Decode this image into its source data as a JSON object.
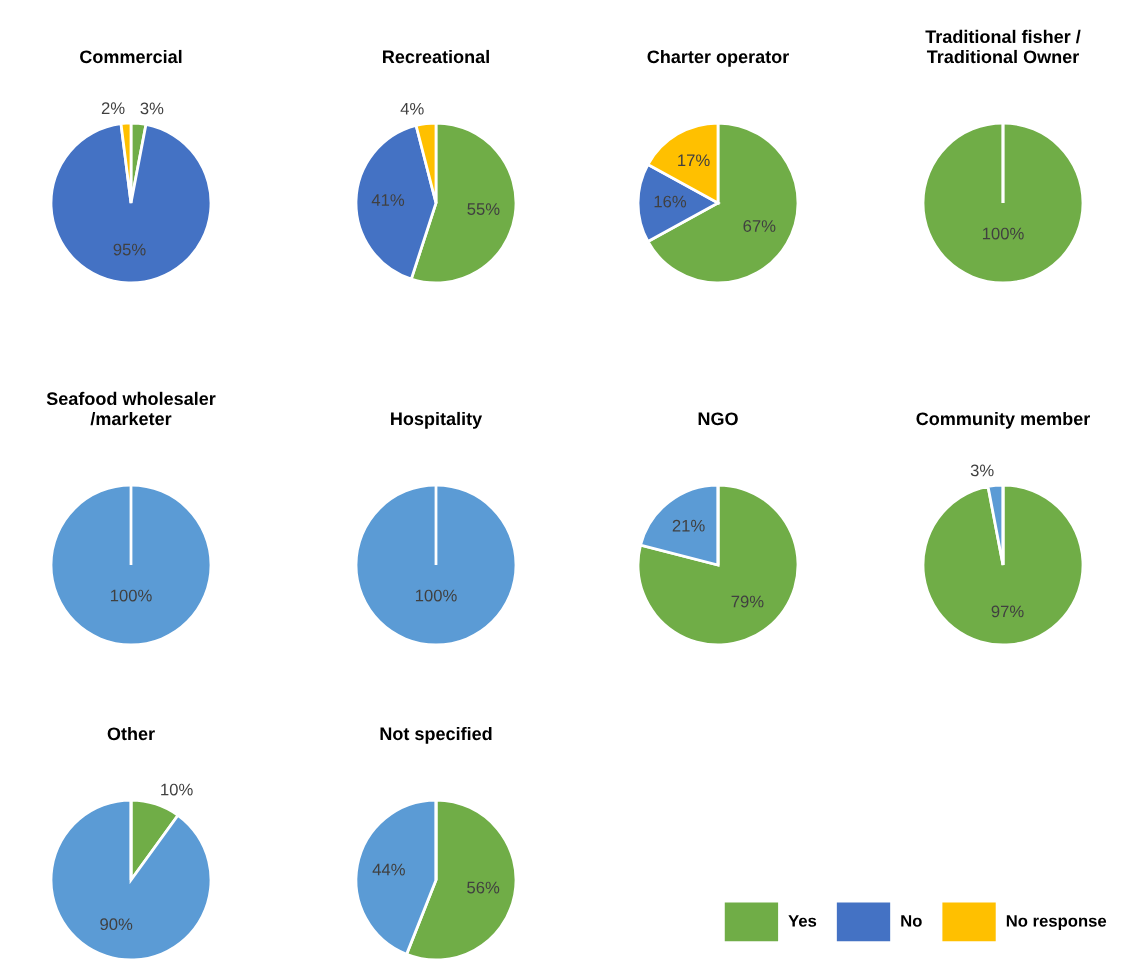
{
  "chart_data": [
    {
      "type": "pie",
      "title": "Commercial",
      "categories": [
        "Yes",
        "No",
        "No response"
      ],
      "values": [
        3,
        95,
        2
      ],
      "colors": [
        "#70ad47",
        "#4472c4",
        "#ffc000"
      ],
      "value_labels": [
        "3%",
        "95%",
        "2%"
      ],
      "legend": "bottom right"
    },
    {
      "type": "pie",
      "title": "Recreational",
      "values": [
        55,
        41,
        4
      ],
      "colors": [
        "#70ad47",
        "#4472c4",
        "#ffc000"
      ],
      "value_labels": [
        "55%",
        "41%",
        "4%"
      ]
    },
    {
      "type": "pie",
      "title": "Charter operator",
      "values": [
        67,
        16,
        17
      ],
      "colors": [
        "#70ad47",
        "#4472c4",
        "#ffc000"
      ],
      "value_labels": [
        "67%",
        "16%",
        "17%"
      ]
    },
    {
      "type": "pie",
      "title": "Traditional fisher /\nTraditional Owner",
      "values": [
        100,
        0,
        0
      ],
      "colors": [
        "#70ad47",
        "#4472c4",
        "#ffc000"
      ],
      "value_labels": [
        "100%",
        null,
        null
      ]
    },
    {
      "type": "pie",
      "title": "Seafood wholesaler\n/marketer",
      "values": [
        0,
        100,
        0
      ],
      "colors": [
        "#70ad47",
        "#5b9bd5",
        "#ffc000"
      ],
      "value_labels": [
        null,
        "100%",
        null
      ]
    },
    {
      "type": "pie",
      "title": "Hospitality",
      "values": [
        0,
        100,
        0
      ],
      "colors": [
        "#70ad47",
        "#5b9bd5",
        "#ffc000"
      ],
      "value_labels": [
        null,
        "100%",
        null
      ]
    },
    {
      "type": "pie",
      "title": "NGO",
      "values": [
        79,
        21,
        0
      ],
      "colors": [
        "#70ad47",
        "#5b9bd5",
        "#ffc000"
      ],
      "value_labels": [
        "79%",
        "21%",
        null
      ]
    },
    {
      "type": "pie",
      "title": "Community member",
      "values": [
        97,
        3,
        0
      ],
      "colors": [
        "#70ad47",
        "#5b9bd5",
        "#ffc000"
      ],
      "value_labels": [
        "97%",
        "3%",
        null
      ]
    },
    {
      "type": "pie",
      "title": "Other",
      "values": [
        10,
        90,
        0
      ],
      "colors": [
        "#70ad47",
        "#5b9bd5",
        "#ffc000"
      ],
      "value_labels": [
        "10%",
        "90%",
        null
      ]
    },
    {
      "type": "pie",
      "title": "Not specified",
      "values": [
        56,
        44,
        0
      ],
      "colors": [
        "#70ad47",
        "#5b9bd5",
        "#ffc000"
      ],
      "value_labels": [
        "56%",
        "44%",
        null
      ]
    }
  ]
}
